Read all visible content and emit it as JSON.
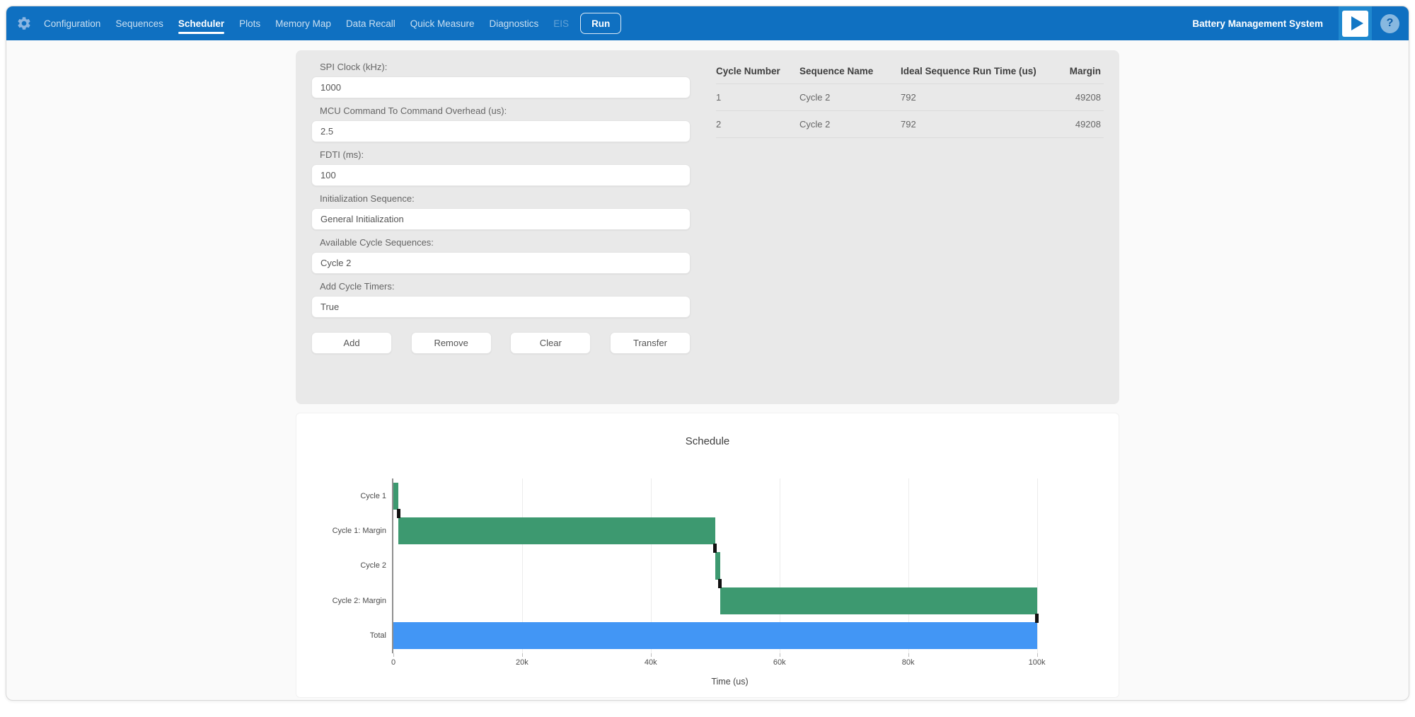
{
  "navbar": {
    "brand": "Battery Management System",
    "help_glyph": "?",
    "run_label": "Run",
    "tabs": [
      {
        "label": "Configuration",
        "state": "normal"
      },
      {
        "label": "Sequences",
        "state": "normal"
      },
      {
        "label": "Scheduler",
        "state": "active"
      },
      {
        "label": "Plots",
        "state": "normal"
      },
      {
        "label": "Memory Map",
        "state": "normal"
      },
      {
        "label": "Data Recall",
        "state": "normal"
      },
      {
        "label": "Quick Measure",
        "state": "normal"
      },
      {
        "label": "Diagnostics",
        "state": "normal"
      },
      {
        "label": "EIS",
        "state": "disabled"
      }
    ]
  },
  "panel": {
    "fields": [
      {
        "label": "SPI Clock (kHz):",
        "value": "1000"
      },
      {
        "label": "MCU Command To Command Overhead (us):",
        "value": "2.5"
      },
      {
        "label": "FDTI (ms):",
        "value": "100"
      },
      {
        "label": "Initialization Sequence:",
        "value": "General Initialization"
      },
      {
        "label": "Available Cycle Sequences:",
        "value": "Cycle 2"
      },
      {
        "label": "Add Cycle Timers:",
        "value": "True"
      }
    ],
    "buttons": [
      {
        "label": "Add"
      },
      {
        "label": "Remove"
      },
      {
        "label": "Clear"
      },
      {
        "label": "Transfer"
      }
    ]
  },
  "table": {
    "headers": [
      "Cycle Number",
      "Sequence Name",
      "Ideal Sequence Run Time (us)",
      "Margin"
    ],
    "rows": [
      [
        "1",
        "Cycle 2",
        "792",
        "49208"
      ],
      [
        "2",
        "Cycle 2",
        "792",
        "49208"
      ]
    ]
  },
  "chart_data": {
    "type": "bar",
    "subtype": "horizontal-gantt",
    "title": "Schedule",
    "xlabel": "Time (us)",
    "categories": [
      "Cycle 1",
      "Cycle 1: Margin",
      "Cycle 2",
      "Cycle 2: Margin",
      "Total"
    ],
    "bars": [
      {
        "row": "Cycle 1",
        "start": 0,
        "end": 792,
        "color": "#3d9970"
      },
      {
        "row": "Cycle 1: Margin",
        "start": 792,
        "end": 50000,
        "color": "#3d9970"
      },
      {
        "row": "Cycle 2",
        "start": 50000,
        "end": 50792,
        "color": "#3d9970"
      },
      {
        "row": "Cycle 2: Margin",
        "start": 50792,
        "end": 100000,
        "color": "#3d9970"
      },
      {
        "row": "Total",
        "start": 0,
        "end": 100000,
        "color": "#4296f5"
      }
    ],
    "boundary_markers": [
      {
        "x": 792,
        "between_rows": [
          0,
          1
        ]
      },
      {
        "x": 50000,
        "between_rows": [
          1,
          2
        ]
      },
      {
        "x": 50792,
        "between_rows": [
          2,
          3
        ]
      },
      {
        "x": 100000,
        "between_rows": [
          3,
          4
        ]
      }
    ],
    "marker_color": "#111111",
    "x_ticks": [
      {
        "value": 0,
        "label": "0"
      },
      {
        "value": 20000,
        "label": "20k"
      },
      {
        "value": 40000,
        "label": "40k"
      },
      {
        "value": 60000,
        "label": "60k"
      },
      {
        "value": 80000,
        "label": "80k"
      },
      {
        "value": 100000,
        "label": "100k"
      }
    ],
    "xlim": [
      0,
      105000
    ],
    "grid": "vertical",
    "legend": "none"
  },
  "colors": {
    "navbar_blue": "#0f70c1",
    "panel_gray": "#e9e9e9",
    "bar_green": "#3d9970",
    "bar_blue": "#4296f5",
    "marker_black": "#111111"
  }
}
